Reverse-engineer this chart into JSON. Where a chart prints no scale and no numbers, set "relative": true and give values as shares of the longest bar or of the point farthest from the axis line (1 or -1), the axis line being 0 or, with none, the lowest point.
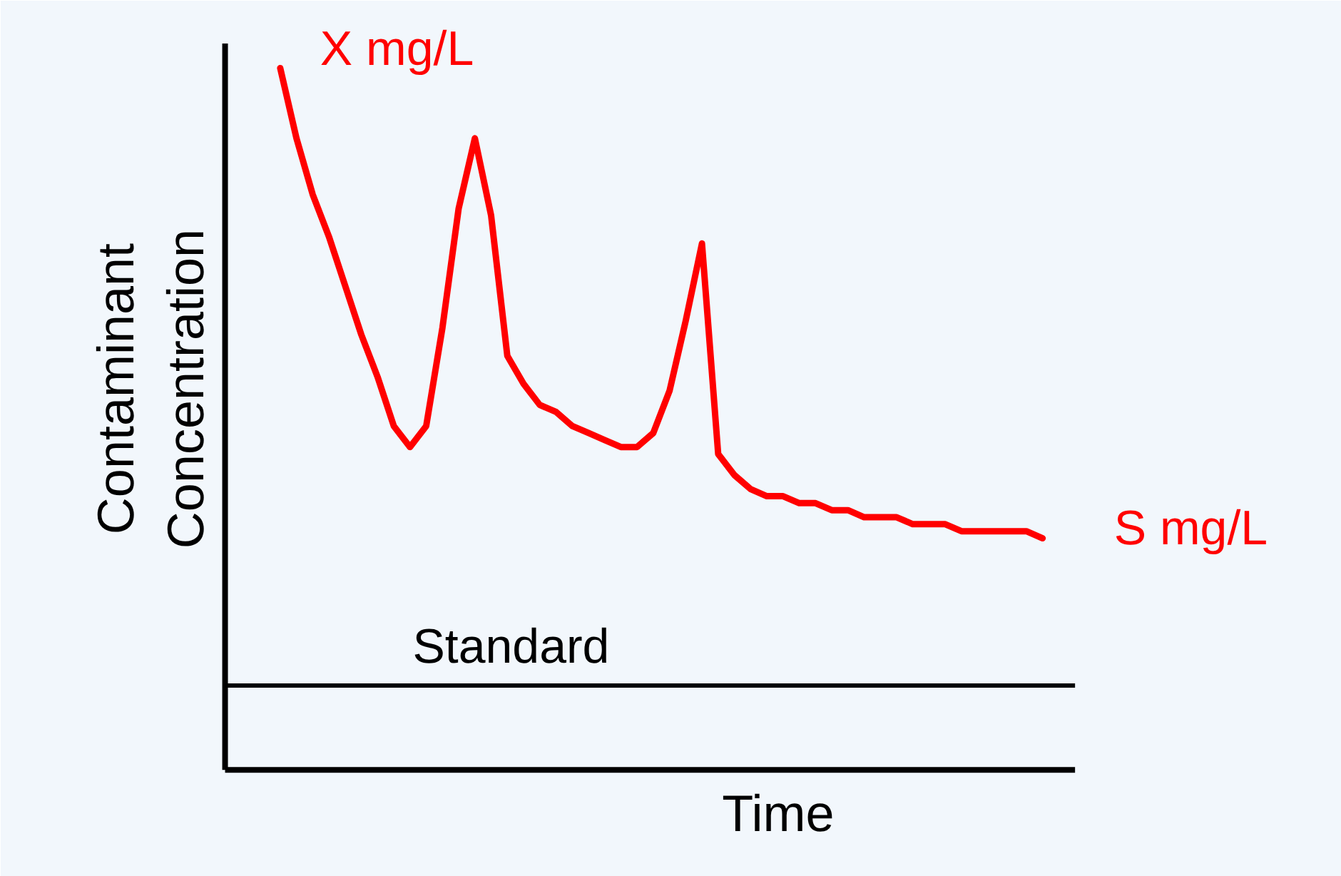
{
  "chart_data": {
    "type": "line",
    "relative": true,
    "xlabel": "Time",
    "ylabel": "Contaminant\nConcentration",
    "categories": [
      null,
      null,
      null,
      null,
      null,
      null,
      null,
      null,
      null,
      null,
      null,
      null,
      null,
      null,
      null,
      null,
      null,
      null,
      null,
      null,
      null,
      null,
      null,
      null,
      null,
      null,
      null,
      null,
      null,
      null,
      null,
      null,
      null,
      null,
      null,
      null,
      null,
      null,
      null,
      null,
      null,
      null,
      null,
      null,
      null,
      null,
      null,
      null
    ],
    "series": [
      {
        "color": "#ff0000",
        "values": [
          1,
          0.9,
          0.82,
          0.76,
          0.69,
          0.62,
          0.56,
          0.49,
          0.46,
          0.49,
          0.63,
          0.8,
          0.9,
          0.79,
          0.59,
          0.55,
          0.52,
          0.51,
          0.49,
          0.48,
          0.47,
          0.46,
          0.46,
          0.48,
          0.54,
          0.64,
          0.75,
          0.45,
          0.42,
          0.4,
          0.39,
          0.39,
          0.38,
          0.38,
          0.37,
          0.37,
          0.36,
          0.36,
          0.36,
          0.35,
          0.35,
          0.35,
          0.34,
          0.34,
          0.34,
          0.34,
          0.34,
          0.33
        ]
      }
    ],
    "annotations": [
      "X mg/L",
      "S mg/L"
    ],
    "ref_lines": [
      {
        "axis": "y",
        "value": 0.12,
        "label": "Standard",
        "color": "#000000"
      }
    ],
    "line_style": "solid"
  }
}
